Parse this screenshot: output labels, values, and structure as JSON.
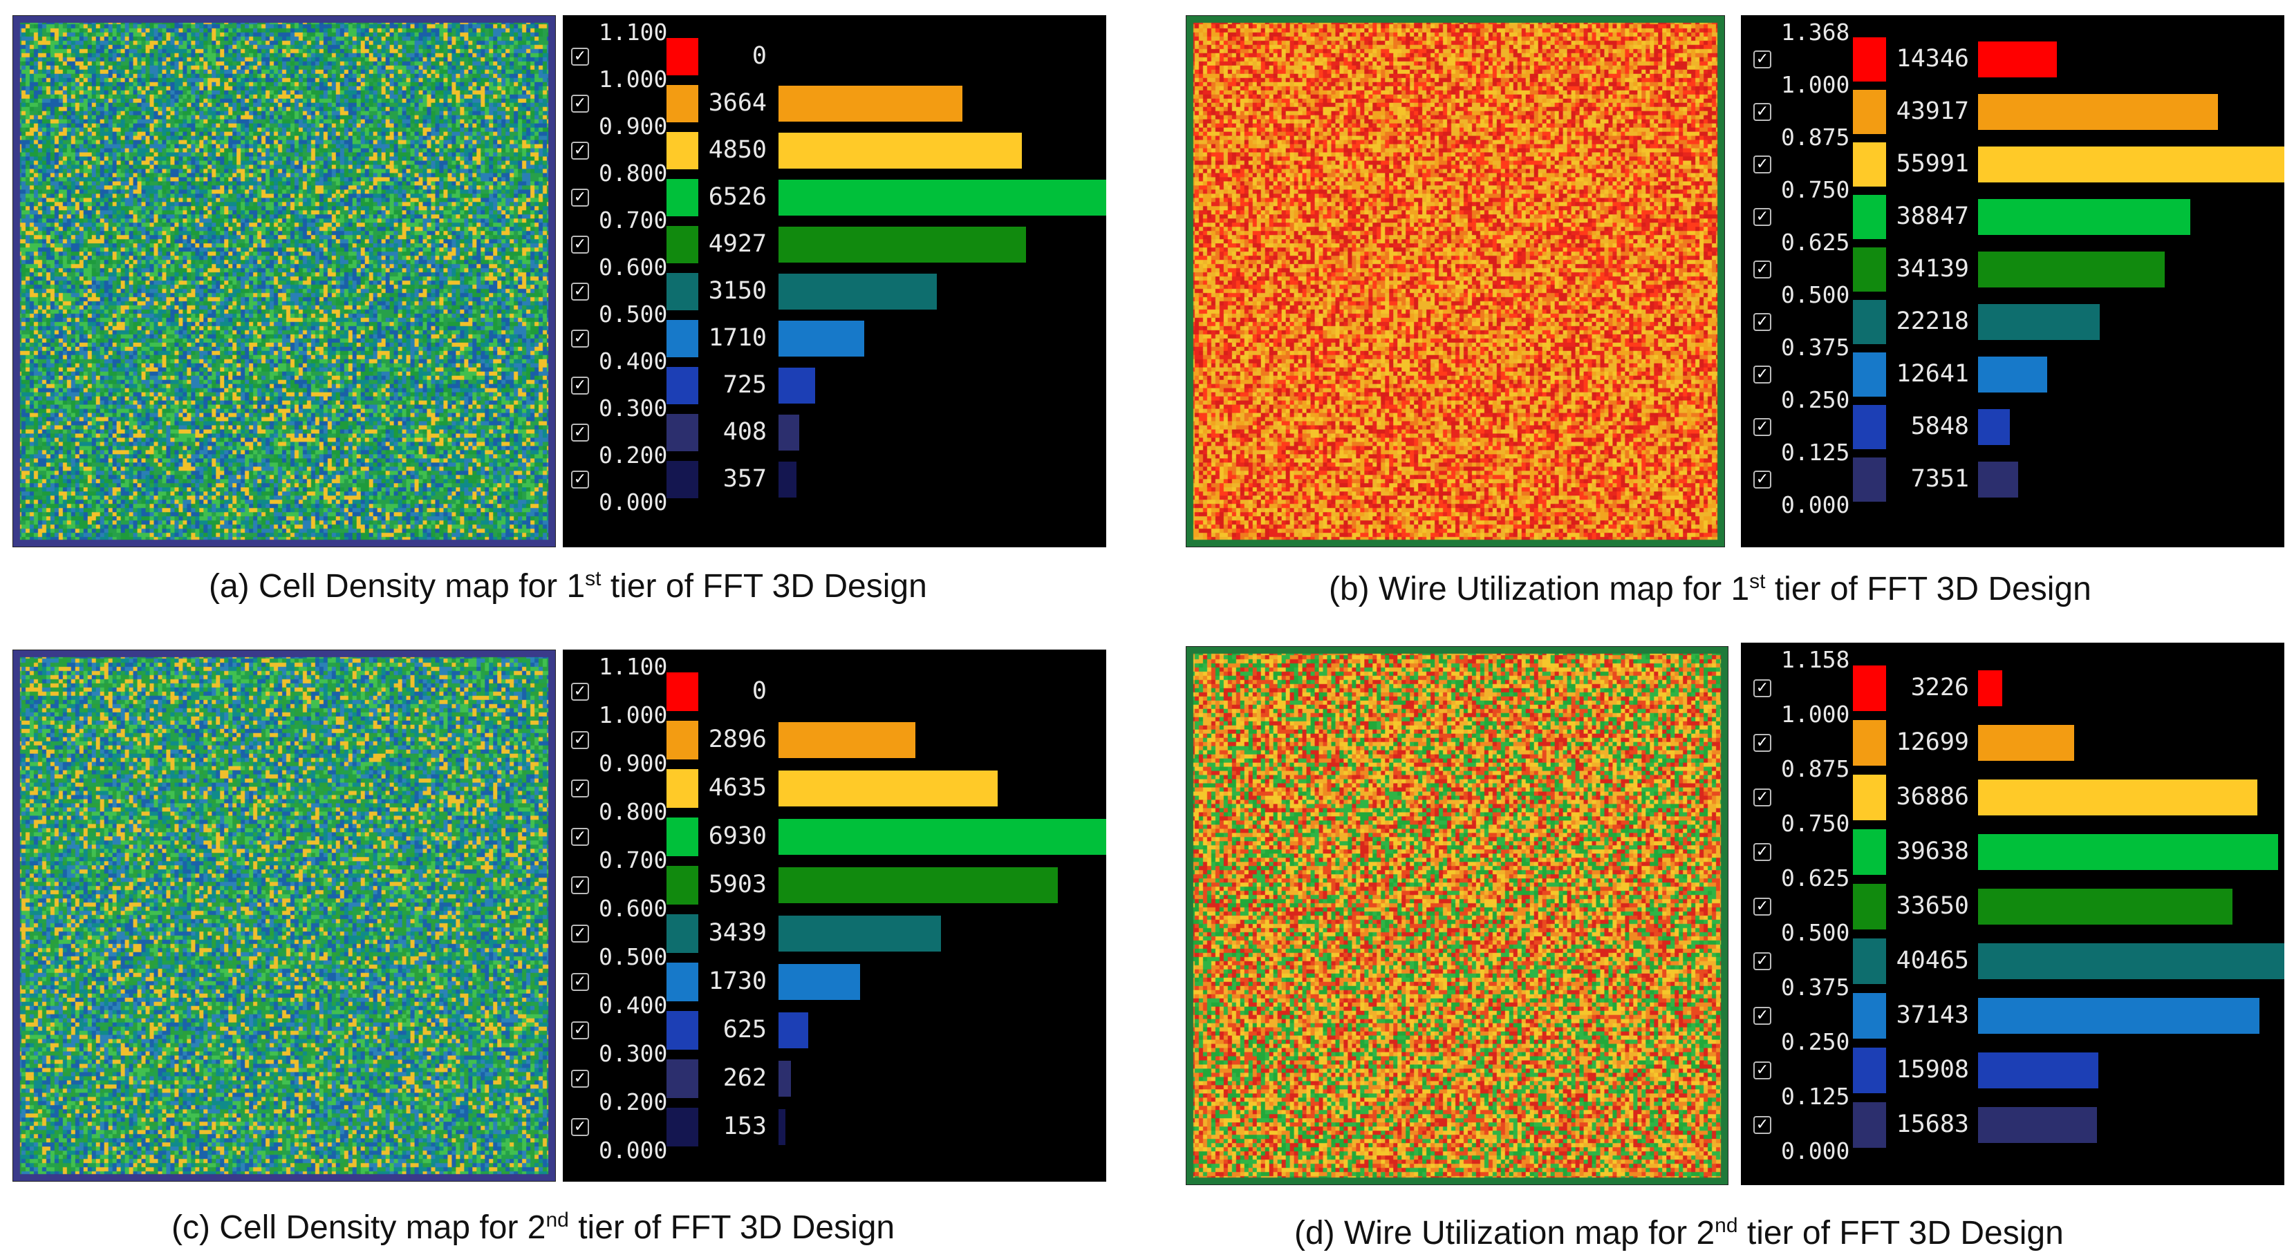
{
  "panels": [
    {
      "caption": {
        "prefix": "(a) Cell Density map for 1",
        "sup": "st",
        "suffix": " tier of FFT 3D Design"
      },
      "map_palette": [
        "#1e9b3c",
        "#f2c12a",
        "#2a7fb5",
        "#27a04a",
        "#1a5fa8",
        "#0f8a8a",
        "#3fbf4f"
      ],
      "legend": {
        "ticks": [
          "1.100",
          "1.000",
          "0.900",
          "0.800",
          "0.700",
          "0.600",
          "0.500",
          "0.400",
          "0.300",
          "0.200",
          "0.000"
        ],
        "counts": [
          "0",
          "3664",
          "4850",
          "6526",
          "4927",
          "3150",
          "1710",
          "725",
          "408",
          "357"
        ]
      }
    },
    {
      "caption": {
        "prefix": "(b) Wire Utilization map for 1",
        "sup": "st",
        "suffix": " tier of FFT 3D Design"
      },
      "map_palette": [
        "#f2a41f",
        "#e8261c",
        "#f5c32a",
        "#ef7a1e",
        "#d91f1a",
        "#f0b429",
        "#ff3b1a"
      ],
      "legend": {
        "ticks": [
          "1.368",
          "1.000",
          "0.875",
          "0.750",
          "0.625",
          "0.500",
          "0.375",
          "0.250",
          "0.125",
          "0.000"
        ],
        "counts": [
          "14346",
          "43917",
          "55991",
          "38847",
          "34139",
          "22218",
          "12641",
          "5848",
          "7351"
        ]
      }
    },
    {
      "caption": {
        "prefix": "(c) Cell Density map for 2",
        "sup": "nd",
        "suffix": " tier of FFT 3D Design"
      },
      "map_palette": [
        "#2aa03c",
        "#efbf2c",
        "#2c82b8",
        "#24a14a",
        "#1b62aa",
        "#108b8b",
        "#41c050"
      ],
      "legend": {
        "ticks": [
          "1.100",
          "1.000",
          "0.900",
          "0.800",
          "0.700",
          "0.600",
          "0.500",
          "0.400",
          "0.300",
          "0.200",
          "0.000"
        ],
        "counts": [
          "0",
          "2896",
          "4635",
          "6930",
          "5903",
          "3439",
          "1730",
          "625",
          "262",
          "153"
        ]
      }
    },
    {
      "caption": {
        "prefix": "(d) Wire Utilization map for 2",
        "sup": "nd",
        "suffix": " tier of FFT 3D Design"
      },
      "map_palette": [
        "#f2b12a",
        "#22a83a",
        "#e84a1f",
        "#f5c72b",
        "#2fb446",
        "#ef8a22",
        "#d9261c"
      ],
      "legend": {
        "ticks": [
          "1.158",
          "1.000",
          "0.875",
          "0.750",
          "0.625",
          "0.500",
          "0.375",
          "0.250",
          "0.125",
          "0.000"
        ],
        "counts": [
          "3226",
          "12699",
          "36886",
          "39638",
          "33650",
          "40465",
          "37143",
          "15908",
          "15683"
        ]
      }
    }
  ],
  "bin_colors": {
    "density": [
      "#ff0000",
      "#f39c12",
      "#ffca28",
      "#00c03a",
      "#118a0e",
      "#0e6e6e",
      "#1779c9",
      "#1c3fb5",
      "#2c2f6e",
      "#141650"
    ],
    "wire": [
      "#ff0000",
      "#f39c12",
      "#ffca28",
      "#00c03a",
      "#118a0e",
      "#0e6e6e",
      "#1779c9",
      "#1c3fb5",
      "#2c2f6e"
    ]
  }
}
